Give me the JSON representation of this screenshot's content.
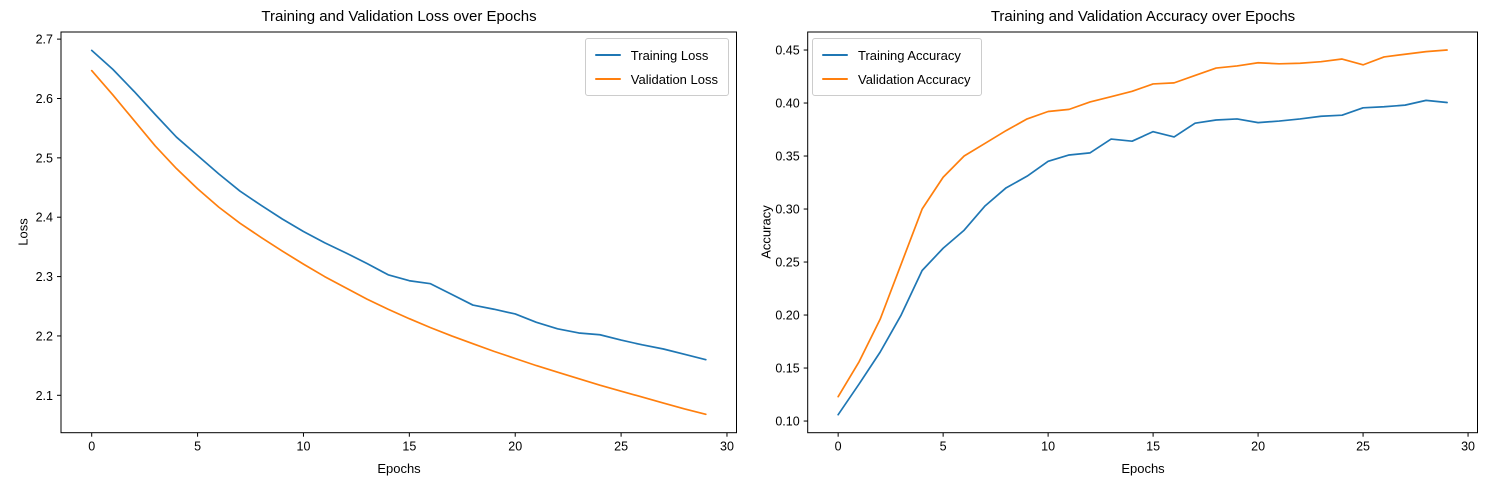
{
  "figure": {
    "background": "#ffffff"
  },
  "chart_data": [
    {
      "id": "loss-chart",
      "type": "line",
      "title": "Training and Validation Loss over Epochs",
      "xlabel": "Epochs",
      "ylabel": "Loss",
      "xlim": [
        -1.45,
        30.45
      ],
      "ylim": [
        2.037,
        2.712
      ],
      "grid": false,
      "legend_position": "upper-right",
      "x_ticks": [
        0,
        5,
        10,
        15,
        20,
        25,
        30
      ],
      "x_tick_labels": [
        "0",
        "5",
        "10",
        "15",
        "20",
        "25",
        "30"
      ],
      "y_ticks": [
        2.1,
        2.2,
        2.3,
        2.4,
        2.5,
        2.6,
        2.7
      ],
      "y_tick_labels": [
        "2.1",
        "2.2",
        "2.3",
        "2.4",
        "2.5",
        "2.6",
        "2.7"
      ],
      "x": [
        0,
        1,
        2,
        3,
        4,
        5,
        6,
        7,
        8,
        9,
        10,
        11,
        12,
        13,
        14,
        15,
        16,
        17,
        18,
        19,
        20,
        21,
        22,
        23,
        24,
        25,
        26,
        27,
        28,
        29
      ],
      "series": [
        {
          "name": "Training Loss",
          "color": "#1f77b4",
          "values": [
            2.681,
            2.649,
            2.612,
            2.573,
            2.535,
            2.504,
            2.473,
            2.444,
            2.42,
            2.397,
            2.376,
            2.357,
            2.34,
            2.322,
            2.303,
            2.293,
            2.288,
            2.27,
            2.252,
            2.245,
            2.237,
            2.223,
            2.212,
            2.205,
            2.202,
            2.193,
            2.185,
            2.178,
            2.169,
            2.16
          ]
        },
        {
          "name": "Validation Loss",
          "color": "#ff7f0e",
          "values": [
            2.647,
            2.606,
            2.563,
            2.52,
            2.482,
            2.448,
            2.417,
            2.39,
            2.366,
            2.343,
            2.321,
            2.3,
            2.281,
            2.262,
            2.245,
            2.229,
            2.214,
            2.2,
            2.187,
            2.174,
            2.162,
            2.15,
            2.139,
            2.128,
            2.117,
            2.107,
            2.097,
            2.087,
            2.077,
            2.068
          ]
        }
      ]
    },
    {
      "id": "accuracy-chart",
      "type": "line",
      "title": "Training and Validation Accuracy over Epochs",
      "xlabel": "Epochs",
      "ylabel": "Accuracy",
      "xlim": [
        -1.45,
        30.45
      ],
      "ylim": [
        0.089,
        0.467
      ],
      "grid": false,
      "legend_position": "upper-left",
      "x_ticks": [
        0,
        5,
        10,
        15,
        20,
        25,
        30
      ],
      "x_tick_labels": [
        "0",
        "5",
        "10",
        "15",
        "20",
        "25",
        "30"
      ],
      "y_ticks": [
        0.1,
        0.15,
        0.2,
        0.25,
        0.3,
        0.35,
        0.4,
        0.45
      ],
      "y_tick_labels": [
        "0.10",
        "0.15",
        "0.20",
        "0.25",
        "0.30",
        "0.35",
        "0.40",
        "0.45"
      ],
      "x": [
        0,
        1,
        2,
        3,
        4,
        5,
        6,
        7,
        8,
        9,
        10,
        11,
        12,
        13,
        14,
        15,
        16,
        17,
        18,
        19,
        20,
        21,
        22,
        23,
        24,
        25,
        26,
        27,
        28,
        29
      ],
      "series": [
        {
          "name": "Training Accuracy",
          "color": "#1f77b4",
          "values": [
            0.106,
            0.135,
            0.165,
            0.2,
            0.242,
            0.263,
            0.28,
            0.303,
            0.32,
            0.331,
            0.345,
            0.351,
            0.353,
            0.366,
            0.364,
            0.373,
            0.368,
            0.381,
            0.384,
            0.385,
            0.3815,
            0.383,
            0.385,
            0.3875,
            0.3885,
            0.3955,
            0.3965,
            0.398,
            0.4025,
            0.4005
          ]
        },
        {
          "name": "Validation Accuracy",
          "color": "#ff7f0e",
          "values": [
            0.123,
            0.156,
            0.196,
            0.248,
            0.3,
            0.33,
            0.35,
            0.362,
            0.374,
            0.385,
            0.392,
            0.394,
            0.401,
            0.406,
            0.411,
            0.418,
            0.419,
            0.426,
            0.433,
            0.435,
            0.438,
            0.437,
            0.4375,
            0.439,
            0.4415,
            0.436,
            0.4435,
            0.446,
            0.4485,
            0.45
          ]
        }
      ]
    }
  ]
}
